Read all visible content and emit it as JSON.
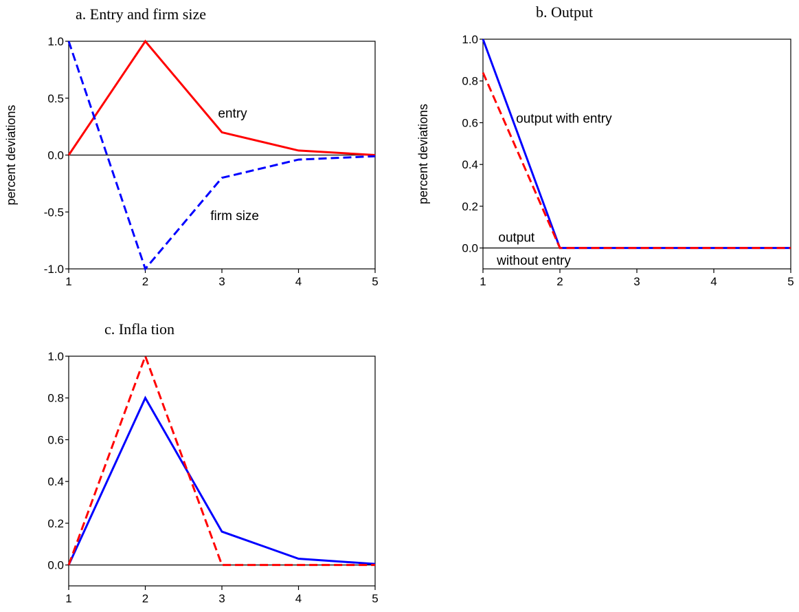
{
  "chart_data": [
    {
      "type": "line",
      "title": "a. Entry and firm size",
      "ylabel": "percent deviations",
      "xlabel": "",
      "x": [
        1,
        2,
        3,
        4,
        5
      ],
      "xticks": [
        "1",
        "2",
        "3",
        "4",
        "5"
      ],
      "xlim": [
        1,
        5
      ],
      "ylim": [
        -1.0,
        1.0
      ],
      "yticks": [
        "-1.0",
        "-0.5",
        "0.0",
        "0.5",
        "1.0"
      ],
      "zero_line": true,
      "grid": false,
      "series": [
        {
          "name": "entry",
          "color": "#ff0000",
          "style": "solid",
          "values": [
            0.0,
            1.0,
            0.2,
            0.04,
            0.0
          ]
        },
        {
          "name": "firm size",
          "color": "#0000ff",
          "style": "dashed",
          "values": [
            1.0,
            -1.0,
            -0.2,
            -0.04,
            -0.01
          ]
        }
      ],
      "annotations": [
        {
          "text": "entry",
          "x": 2.95,
          "y": 0.33
        },
        {
          "text": "firm size",
          "x": 2.85,
          "y": -0.57
        }
      ]
    },
    {
      "type": "line",
      "title": "b. Output",
      "ylabel": "percent deviations",
      "xlabel": "",
      "x": [
        1,
        2,
        3,
        4,
        5
      ],
      "xticks": [
        "1",
        "2",
        "3",
        "4",
        "5"
      ],
      "xlim": [
        1,
        5
      ],
      "ylim": [
        -0.1,
        1.0
      ],
      "yticks": [
        "0.0",
        "0.2",
        "0.4",
        "0.6",
        "0.8",
        "1.0"
      ],
      "zero_line": true,
      "grid": false,
      "series": [
        {
          "name": "output with entry",
          "color": "#0000ff",
          "style": "solid",
          "values": [
            1.0,
            0.0,
            0.0,
            0.0,
            0.0
          ]
        },
        {
          "name": "output without entry",
          "color": "#ff0000",
          "style": "dashed",
          "values": [
            0.84,
            0.0,
            0.0,
            0.0,
            0.0
          ]
        }
      ],
      "annotations": [
        {
          "text": "output with entry",
          "x": 1.43,
          "y": 0.6
        },
        {
          "text": "output",
          "x": 1.2,
          "y": 0.03
        },
        {
          "text": "without entry",
          "x": 1.18,
          "y": -0.08
        }
      ]
    },
    {
      "type": "line",
      "title": "c. Infla tion",
      "ylabel": "",
      "xlabel": "",
      "x": [
        1,
        2,
        3,
        4,
        5
      ],
      "xticks": [
        "1",
        "2",
        "3",
        "4",
        "5"
      ],
      "xlim": [
        1,
        5
      ],
      "ylim": [
        -0.1,
        1.0
      ],
      "yticks": [
        "0.0",
        "0.2",
        "0.4",
        "0.6",
        "0.8",
        "1.0"
      ],
      "zero_line": true,
      "grid": false,
      "series": [
        {
          "name": "",
          "color": "#0000ff",
          "style": "solid",
          "values": [
            0.0,
            0.8,
            0.16,
            0.03,
            0.005
          ]
        },
        {
          "name": "",
          "color": "#ff0000",
          "style": "dashed",
          "values": [
            0.0,
            1.0,
            0.0,
            0.0,
            0.0
          ]
        }
      ],
      "annotations": []
    }
  ]
}
